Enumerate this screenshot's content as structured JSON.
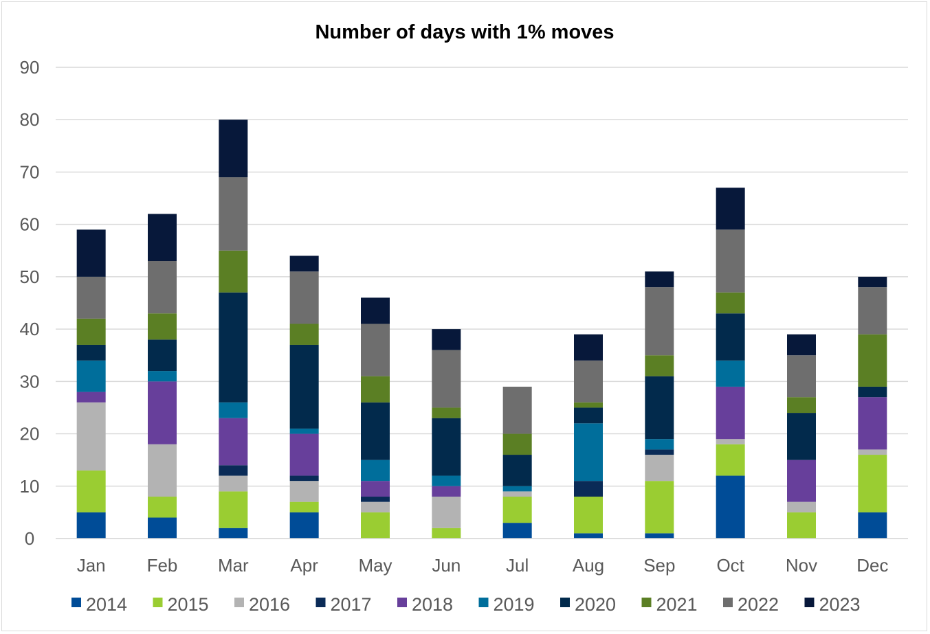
{
  "chart_data": {
    "type": "bar",
    "stacked": true,
    "title": "Number of days with 1% moves",
    "xlabel": "",
    "ylabel": "",
    "ylim": [
      0,
      90
    ],
    "yticks": [
      "0",
      "10",
      "20",
      "30",
      "40",
      "50",
      "60",
      "70",
      "80",
      "90"
    ],
    "grid": true,
    "legend_position": "bottom",
    "categories": [
      "Jan",
      "Feb",
      "Mar",
      "Apr",
      "May",
      "Jun",
      "Jul",
      "Aug",
      "Sep",
      "Oct",
      "Nov",
      "Dec"
    ],
    "series": [
      {
        "name": "2014",
        "color": "#004C97",
        "values": [
          5,
          4,
          2,
          5,
          0,
          0,
          3,
          1,
          1,
          12,
          0,
          5
        ]
      },
      {
        "name": "2015",
        "color": "#9ACD32",
        "values": [
          8,
          4,
          7,
          2,
          5,
          2,
          5,
          7,
          10,
          6,
          5,
          11
        ]
      },
      {
        "name": "2016",
        "color": "#B3B3B3",
        "values": [
          13,
          10,
          3,
          4,
          2,
          6,
          1,
          0,
          5,
          1,
          2,
          1
        ]
      },
      {
        "name": "2017",
        "color": "#0A2B57",
        "values": [
          0,
          0,
          2,
          1,
          1,
          0,
          0,
          3,
          1,
          0,
          0,
          0
        ]
      },
      {
        "name": "2018",
        "color": "#673F9B",
        "values": [
          2,
          12,
          9,
          8,
          3,
          2,
          0,
          0,
          0,
          10,
          8,
          10
        ]
      },
      {
        "name": "2019",
        "color": "#006E9B",
        "values": [
          6,
          2,
          3,
          1,
          4,
          2,
          1,
          11,
          2,
          5,
          0,
          0
        ]
      },
      {
        "name": "2020",
        "color": "#022A4C",
        "values": [
          3,
          6,
          21,
          16,
          11,
          11,
          6,
          3,
          12,
          9,
          9,
          2
        ]
      },
      {
        "name": "2021",
        "color": "#5B7F24",
        "values": [
          5,
          5,
          8,
          4,
          5,
          2,
          4,
          1,
          4,
          4,
          3,
          10
        ]
      },
      {
        "name": "2022",
        "color": "#6E6E6E",
        "values": [
          8,
          10,
          14,
          10,
          10,
          11,
          9,
          8,
          13,
          12,
          8,
          9
        ]
      },
      {
        "name": "2023",
        "color": "#07183A",
        "values": [
          9,
          9,
          11,
          3,
          5,
          4,
          0,
          5,
          3,
          8,
          4,
          2
        ]
      }
    ]
  }
}
